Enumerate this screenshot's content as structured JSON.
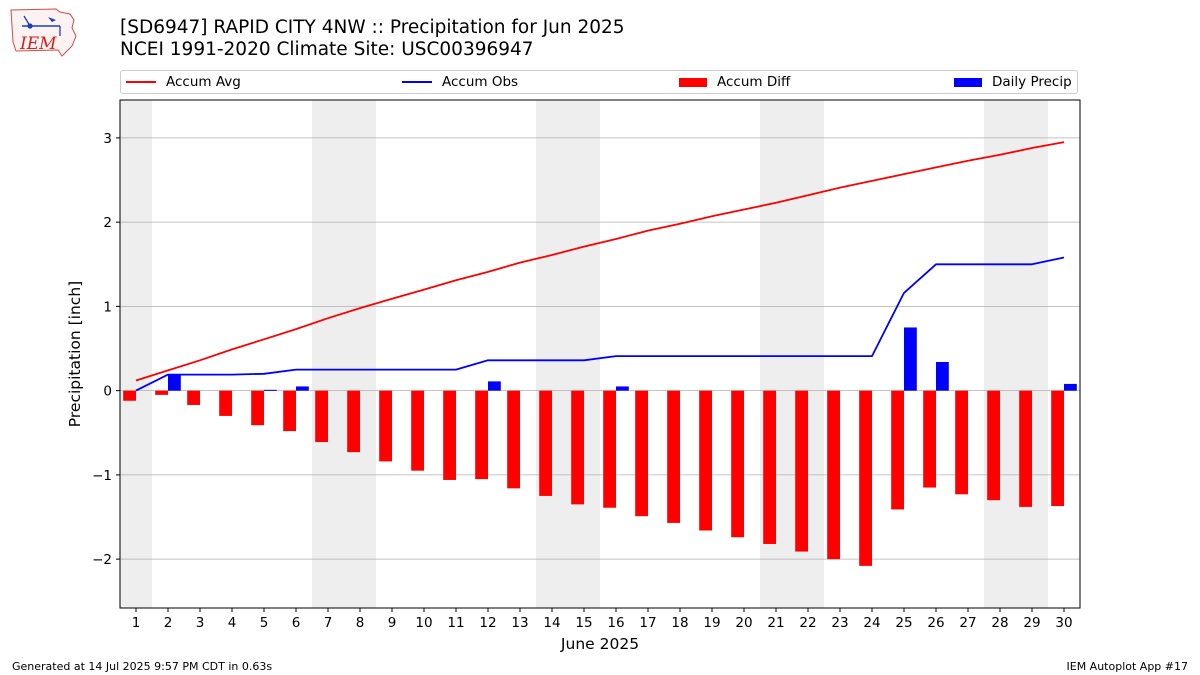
{
  "header": {
    "logo_text": "IEM",
    "title_line1": "[SD6947] RAPID CITY 4NW :: Precipitation for Jun 2025",
    "title_line2": "NCEI 1991-2020 Climate Site: USC00396947"
  },
  "legend": [
    {
      "label": "Accum Avg",
      "kind": "line",
      "color": "#ff0000"
    },
    {
      "label": "Accum Obs",
      "kind": "line",
      "color": "#0000ff"
    },
    {
      "label": "Accum Diff",
      "kind": "bar",
      "color": "#ff0000"
    },
    {
      "label": "Daily Precip",
      "kind": "bar",
      "color": "#0000ff"
    }
  ],
  "footer": {
    "left": "Generated at 14 Jul 2025 9:57 PM CDT in 0.63s",
    "right": "IEM Autoplot App #17"
  },
  "chart_data": {
    "type": "bar",
    "xlabel": "June 2025",
    "ylabel": "Precipitation [inch]",
    "ylim": [
      -2.58,
      3.45
    ],
    "yticks": [
      -2,
      -1,
      0,
      1,
      2,
      3
    ],
    "ytick_labels": [
      "−2",
      "−1",
      "0",
      "1",
      "2",
      "3"
    ],
    "x": [
      1,
      2,
      3,
      4,
      5,
      6,
      7,
      8,
      9,
      10,
      11,
      12,
      13,
      14,
      15,
      16,
      17,
      18,
      19,
      20,
      21,
      22,
      23,
      24,
      25,
      26,
      27,
      28,
      29,
      30
    ],
    "weekend_shading": [
      [
        1,
        1
      ],
      [
        7,
        8
      ],
      [
        14,
        15
      ],
      [
        21,
        22
      ],
      [
        28,
        29
      ]
    ],
    "grid": "horizontal",
    "series": [
      {
        "name": "Accum Avg",
        "type": "line",
        "color": "#ff0000",
        "values": [
          0.12,
          0.24,
          0.36,
          0.49,
          0.61,
          0.73,
          0.86,
          0.98,
          1.09,
          1.2,
          1.31,
          1.41,
          1.52,
          1.61,
          1.71,
          1.8,
          1.9,
          1.98,
          2.07,
          2.15,
          2.23,
          2.32,
          2.41,
          2.49,
          2.57,
          2.65,
          2.73,
          2.8,
          2.88,
          2.95
        ]
      },
      {
        "name": "Accum Obs",
        "type": "line",
        "color": "#0000ff",
        "values": [
          0.0,
          0.19,
          0.19,
          0.19,
          0.2,
          0.25,
          0.25,
          0.25,
          0.25,
          0.25,
          0.25,
          0.36,
          0.36,
          0.36,
          0.36,
          0.41,
          0.41,
          0.41,
          0.41,
          0.41,
          0.41,
          0.41,
          0.41,
          0.41,
          1.16,
          1.5,
          1.5,
          1.5,
          1.5,
          1.58
        ]
      },
      {
        "name": "Accum Diff",
        "type": "bar",
        "color": "#ff0000",
        "values": [
          -0.12,
          -0.05,
          -0.17,
          -0.3,
          -0.41,
          -0.48,
          -0.61,
          -0.73,
          -0.84,
          -0.95,
          -1.06,
          -1.05,
          -1.16,
          -1.25,
          -1.35,
          -1.39,
          -1.49,
          -1.57,
          -1.66,
          -1.74,
          -1.82,
          -1.91,
          -2.0,
          -2.08,
          -1.41,
          -1.15,
          -1.23,
          -1.3,
          -1.38,
          -1.37
        ]
      },
      {
        "name": "Daily Precip",
        "type": "bar",
        "color": "#0000ff",
        "values": [
          0.0,
          0.19,
          0.0,
          0.0,
          0.01,
          0.05,
          0.0,
          0.0,
          0.0,
          0.0,
          0.0,
          0.11,
          0.0,
          0.0,
          0.0,
          0.05,
          0.0,
          0.0,
          0.0,
          0.0,
          0.0,
          0.0,
          0.0,
          0.0,
          0.75,
          0.34,
          0.0,
          0.0,
          0.0,
          0.08
        ]
      }
    ]
  }
}
